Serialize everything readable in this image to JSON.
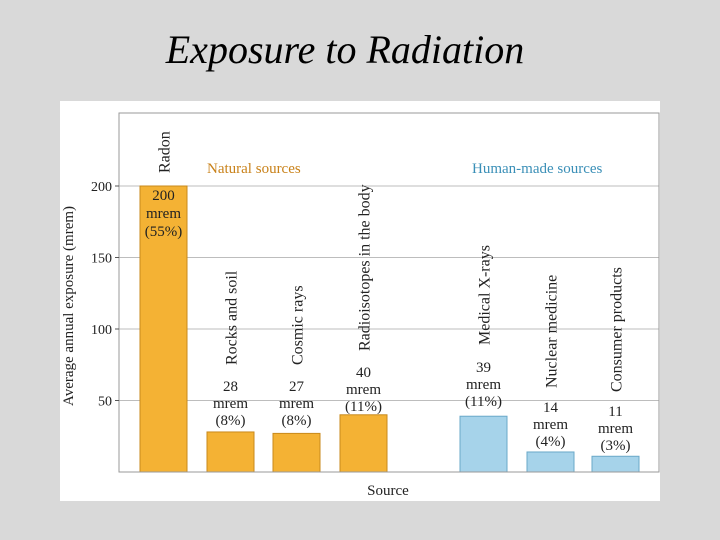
{
  "slide": {
    "title": "Exposure to Radiation"
  },
  "chart_data": {
    "type": "bar",
    "ylabel": "Average annual exposure (mrem)",
    "xlabel": "Source",
    "ylim": [
      0,
      200
    ],
    "yticks": [
      50,
      100,
      150,
      200
    ],
    "grid": true,
    "groups": [
      {
        "label": "Natural sources",
        "color": "#c9821a"
      },
      {
        "label": "Human-made sources",
        "color": "#3a8fb7"
      }
    ],
    "categories": [
      "Radon",
      "Rocks and soil",
      "Cosmic rays",
      "Radioisotopes in the body",
      "Medical X-rays",
      "Nuclear medicine",
      "Consumer products"
    ],
    "values": [
      200,
      28,
      27,
      40,
      39,
      14,
      11
    ],
    "bar_groups": [
      0,
      0,
      0,
      0,
      1,
      1,
      1
    ],
    "value_labels": [
      [
        "200",
        "mrem",
        "(55%)"
      ],
      [
        "28",
        "mrem",
        "(8%)"
      ],
      [
        "27",
        "mrem",
        "(8%)"
      ],
      [
        "40",
        "mrem",
        "(11%)"
      ],
      [
        "39",
        "mrem",
        "(11%)"
      ],
      [
        "14",
        "mrem",
        "(4%)"
      ],
      [
        "11",
        "mrem",
        "(3%)"
      ]
    ],
    "colors": {
      "natural_fill": "#f4b234",
      "natural_stroke": "#c8891b",
      "human_fill": "#a6d3ea",
      "human_stroke": "#6aa8c8",
      "grid": "#bdbdbd"
    }
  }
}
